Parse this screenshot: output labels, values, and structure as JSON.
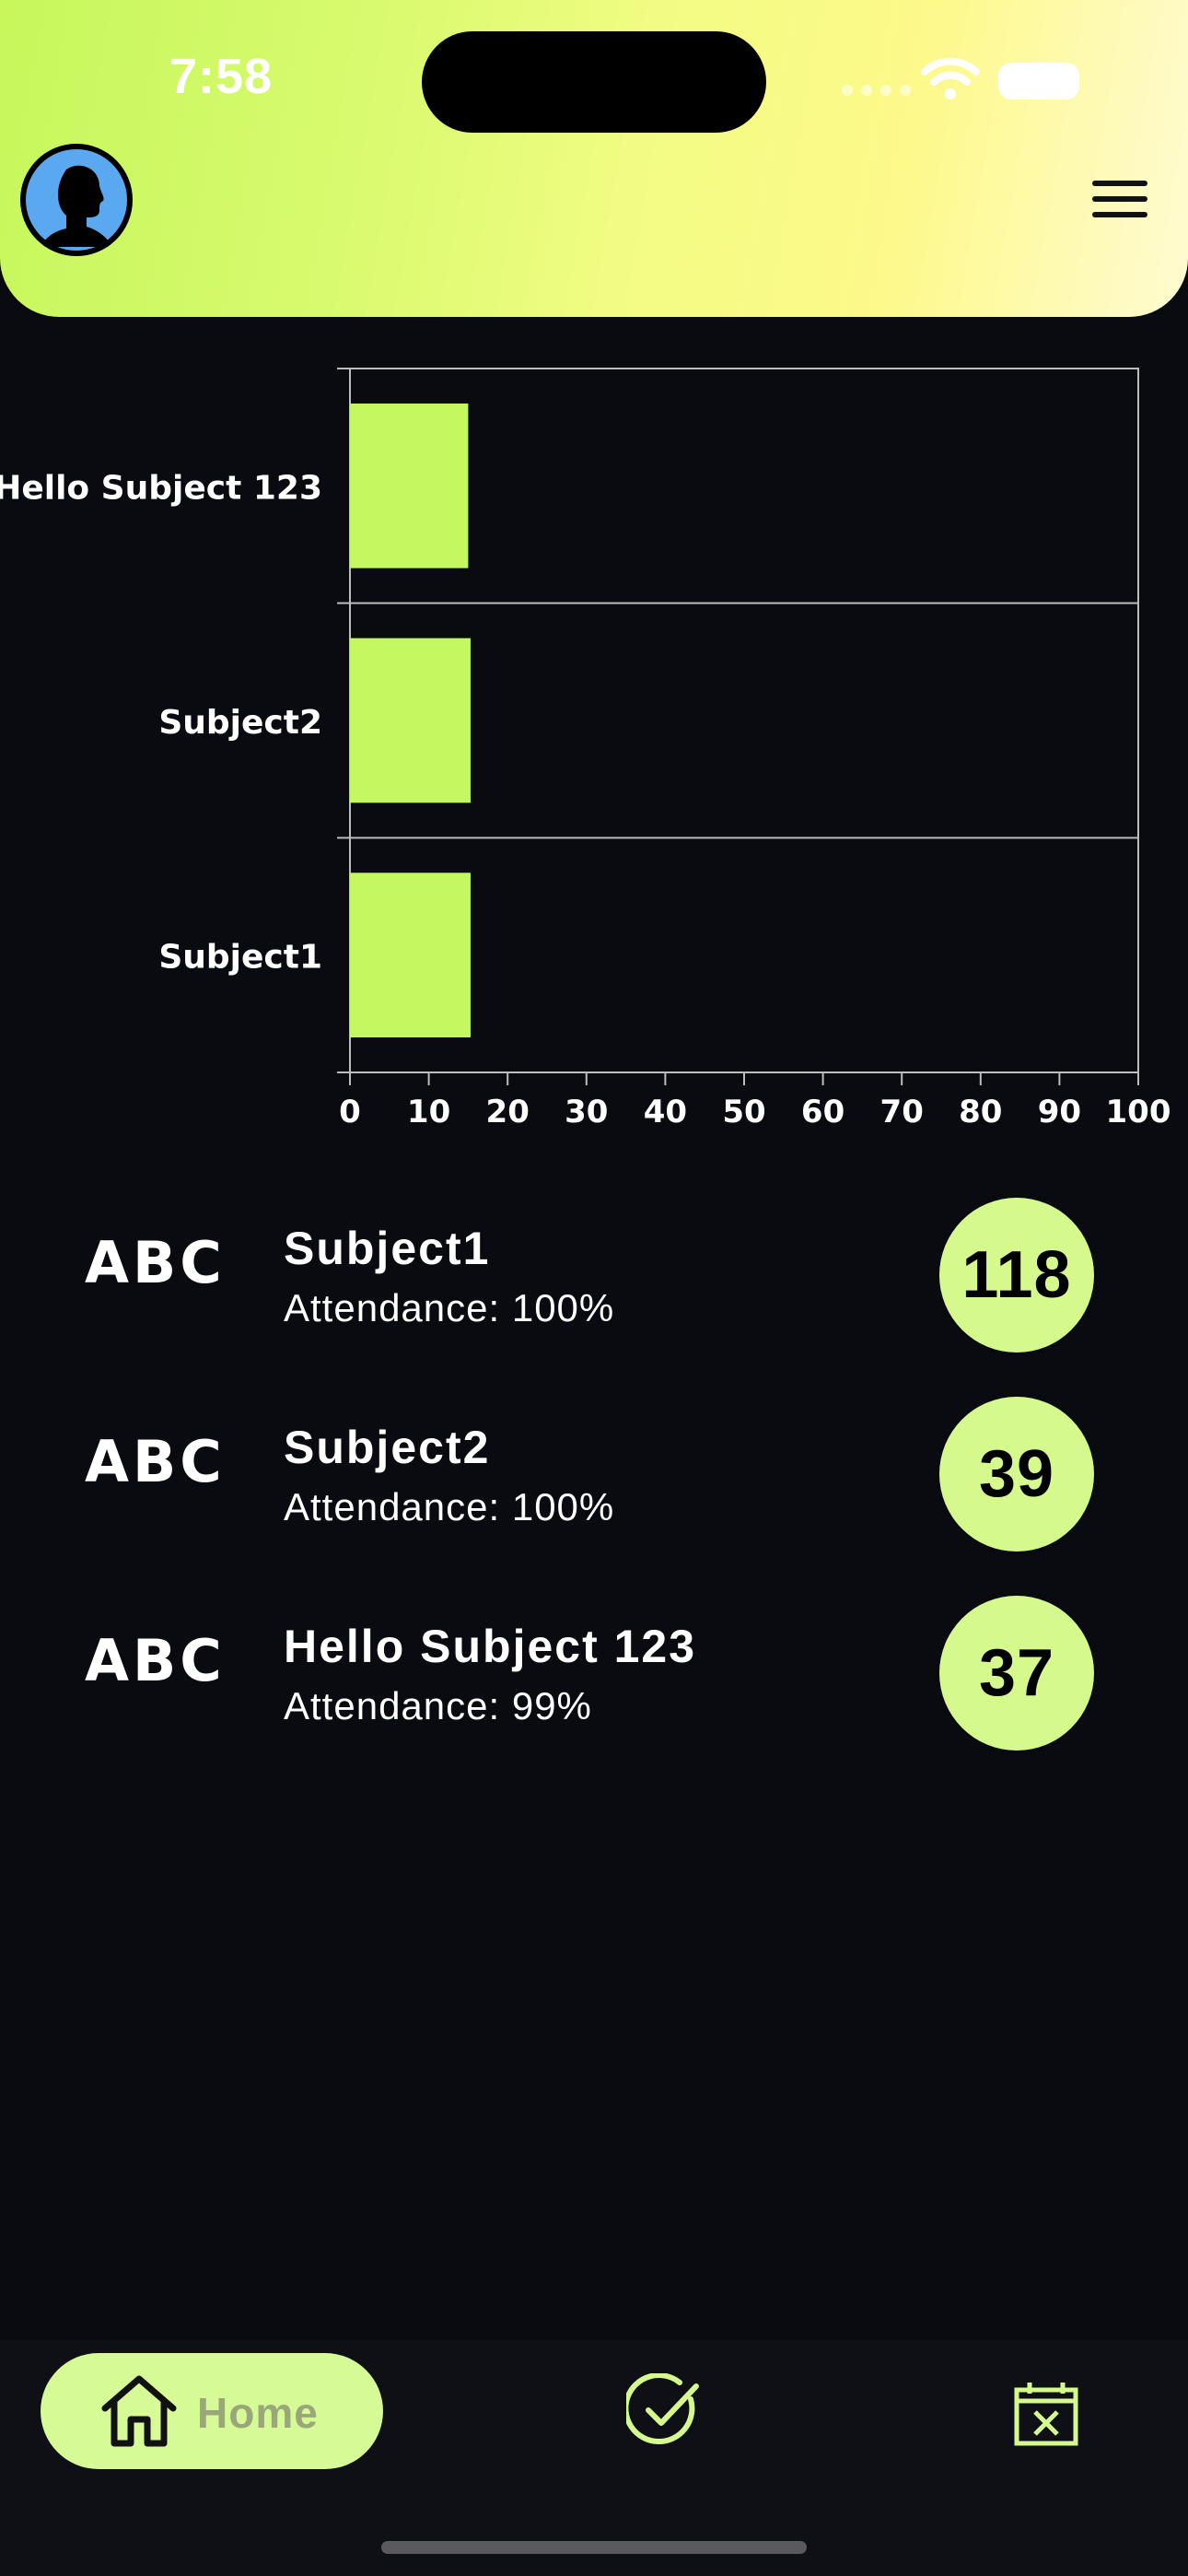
{
  "status_bar": {
    "time": "7:58"
  },
  "header": {
    "avatar_icon": "user-avatar-icon",
    "menu_icon": "hamburger-menu-icon"
  },
  "chart_data": {
    "type": "bar",
    "orientation": "horizontal",
    "categories": [
      "Hello Subject 123",
      "Subject2",
      "Subject1"
    ],
    "values": [
      15,
      15.3,
      15.3
    ],
    "xlim": [
      0,
      100
    ],
    "xticks": [
      "0",
      "10",
      "20",
      "30",
      "40",
      "50",
      "60",
      "70",
      "80",
      "90",
      "100"
    ],
    "grid": true,
    "bar_color": "#c3f85f",
    "title": "",
    "xlabel": "",
    "ylabel": ""
  },
  "subjects": [
    {
      "icon_text": "ABC",
      "name": "Subject1",
      "attendance": "Attendance: 100%",
      "count": "118"
    },
    {
      "icon_text": "ABC",
      "name": "Subject2",
      "attendance": "Attendance: 100%",
      "count": "39"
    },
    {
      "icon_text": "ABC",
      "name": "Hello Subject 123",
      "attendance": "Attendance: 99%",
      "count": "37"
    }
  ],
  "nav": {
    "home_label": "Home",
    "home_icon": "home-icon",
    "check_icon": "check-circle-icon",
    "calendar_icon": "calendar-x-icon"
  },
  "colors": {
    "accent": "#d6f98e",
    "bar": "#c3f85f",
    "background": "#0a0b10"
  }
}
